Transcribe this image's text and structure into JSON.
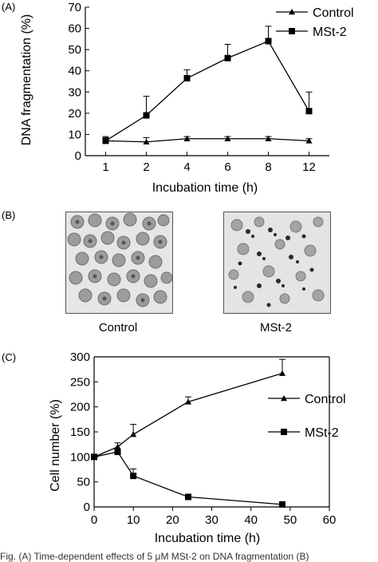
{
  "panels": {
    "a": "(A)",
    "b": "(B)",
    "c": "(C)"
  },
  "micrographs": {
    "left_caption": "Control",
    "right_caption": "MSt-2"
  },
  "chart_data": [
    {
      "type": "line",
      "panel": "(A)",
      "title": "",
      "xlabel": "Incubation time (h)",
      "ylabel": "DNA fragmentation (%)",
      "categories": [
        "1",
        "2",
        "4",
        "6",
        "8",
        "12"
      ],
      "ylim": [
        0,
        70
      ],
      "yticks": [
        0,
        10,
        20,
        30,
        40,
        50,
        60,
        70
      ],
      "legend_position": "top-right",
      "series": [
        {
          "name": "Control",
          "marker": "triangle",
          "values": [
            7,
            6.5,
            8,
            8,
            8,
            7
          ],
          "errors": [
            2,
            2,
            1,
            1,
            1,
            1
          ]
        },
        {
          "name": "MSt-2",
          "marker": "square",
          "values": [
            7,
            19,
            36.5,
            46,
            54,
            21
          ],
          "errors": [
            1.5,
            9,
            4,
            6.5,
            7,
            9
          ]
        }
      ]
    },
    {
      "type": "line",
      "panel": "(C)",
      "title": "",
      "xlabel": "Incubation time (h)",
      "ylabel": "Cell number (%)",
      "x": [
        0,
        6,
        10,
        24,
        48
      ],
      "xlim": [
        0,
        60
      ],
      "xticks": [
        0,
        10,
        20,
        30,
        40,
        50,
        60
      ],
      "ylim": [
        0,
        300
      ],
      "yticks": [
        0,
        50,
        100,
        150,
        200,
        250,
        300
      ],
      "legend_position": "right",
      "series": [
        {
          "name": "Control",
          "marker": "triangle",
          "values": [
            100,
            120,
            145,
            210,
            267
          ],
          "errors": [
            0,
            8,
            20,
            10,
            28
          ]
        },
        {
          "name": "MSt-2",
          "marker": "square",
          "values": [
            100,
            110,
            62,
            20,
            5
          ],
          "errors": [
            0,
            6,
            14,
            0,
            0
          ]
        }
      ]
    }
  ],
  "caption_fragment": "Fig. (A) Time-dependent effects of 5 μM MSt-2 on DNA fragmentation (B)"
}
